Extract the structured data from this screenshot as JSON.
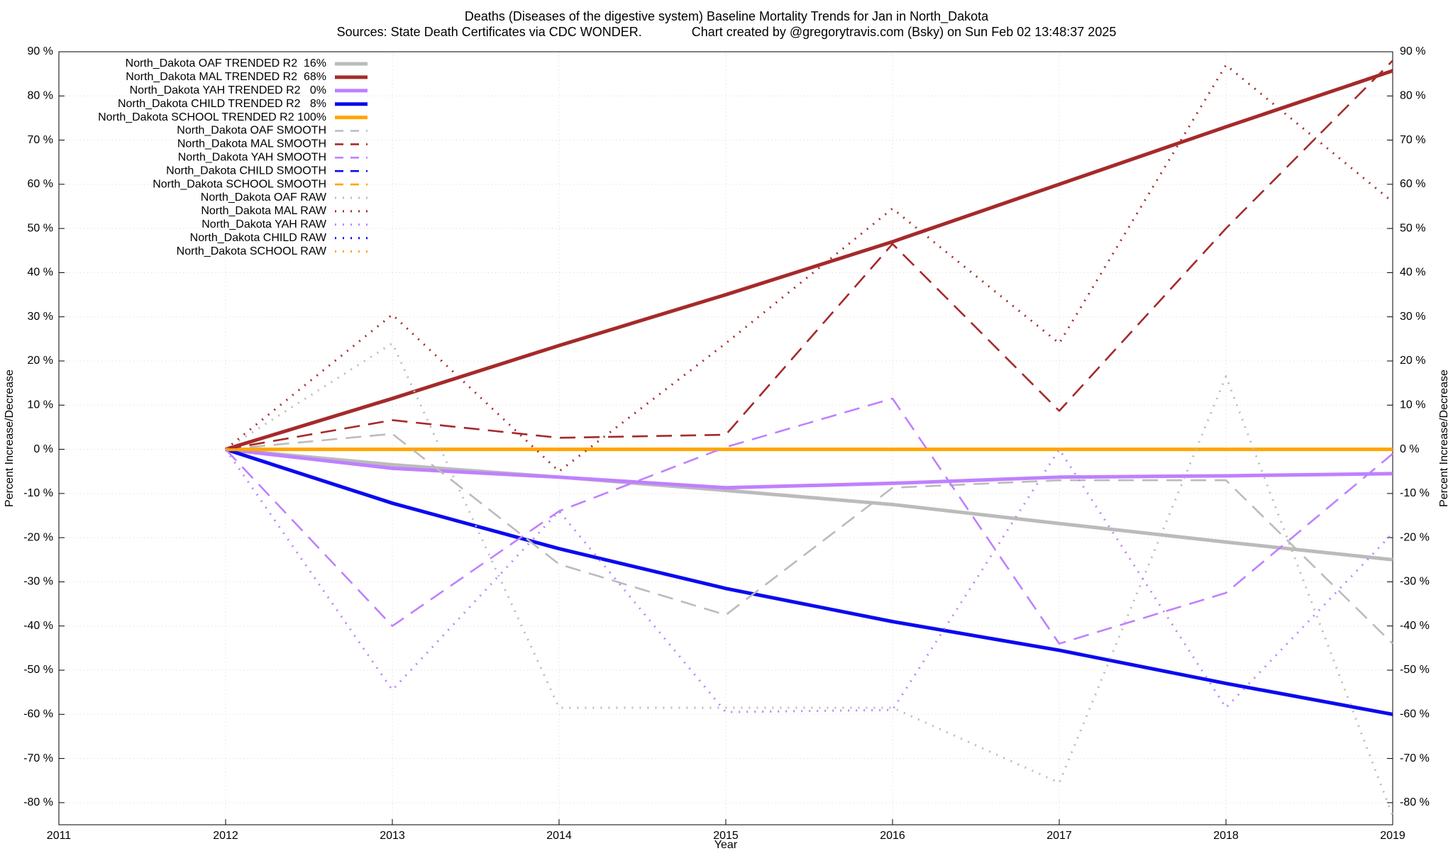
{
  "chart_data": {
    "type": "line",
    "title": "Deaths (Diseases of the digestive system)  Baseline Mortality Trends for Jan in North_Dakota",
    "subtitle": "Sources: State Death Certificates via CDC WONDER.              Chart created by @gregorytravis.com (Bsky) on Sun Feb 02 13:48:37 2025",
    "xlabel": "Year",
    "ylabel": "Percent Increase/Decrease",
    "y2label": "Percent Increase/Decrease",
    "xlim": [
      2011,
      2019
    ],
    "xticks": [
      2011,
      2012,
      2013,
      2014,
      2015,
      2016,
      2017,
      2018,
      2019
    ],
    "ylim": [
      -85,
      90
    ],
    "yticks": [
      {
        "value": -80,
        "label": "-80 %"
      },
      {
        "value": -70,
        "label": "-70 %"
      },
      {
        "value": -60,
        "label": "-60 %"
      },
      {
        "value": -50,
        "label": "-50 %"
      },
      {
        "value": -40,
        "label": "-40 %"
      },
      {
        "value": -30,
        "label": "-30 %"
      },
      {
        "value": -20,
        "label": "-20 %"
      },
      {
        "value": -10,
        "label": "-10 %"
      },
      {
        "value": 0,
        "label": "0 %"
      },
      {
        "value": 10,
        "label": "10 %"
      },
      {
        "value": 20,
        "label": "20 %"
      },
      {
        "value": 30,
        "label": "30 %"
      },
      {
        "value": 40,
        "label": "40 %"
      },
      {
        "value": 50,
        "label": "50 %"
      },
      {
        "value": 60,
        "label": "60 %"
      },
      {
        "value": 70,
        "label": "70 %"
      },
      {
        "value": 80,
        "label": "80 %"
      },
      {
        "value": 90,
        "label": "90 %"
      }
    ],
    "grid": true,
    "legend": "top-left",
    "x": [
      2012,
      2013,
      2014,
      2015,
      2016,
      2017,
      2018,
      2019
    ],
    "series": [
      {
        "name": "North_Dakota OAF TRENDED R2  16%",
        "color": "#bbbbbb",
        "style": "solid",
        "values": [
          0,
          -3.5,
          -6.3,
          -9.3,
          -12.5,
          -16.8,
          -21,
          -25
        ]
      },
      {
        "name": "North_Dakota MAL TRENDED R2  68%",
        "color": "#a52a2a",
        "style": "solid",
        "values": [
          0,
          11.5,
          23.5,
          35,
          47,
          60,
          73,
          85.7
        ]
      },
      {
        "name": "North_Dakota YAH TRENDED R2   0%",
        "color": "#bf80ff",
        "style": "solid",
        "values": [
          0,
          -4.3,
          -6.3,
          -8.7,
          -7.7,
          -6.3,
          -6,
          -5.5
        ]
      },
      {
        "name": "North_Dakota CHILD TRENDED R2   8%",
        "color": "#0a0af0",
        "style": "solid",
        "values": [
          0,
          -12.2,
          -22.5,
          -31.5,
          -39,
          -45.5,
          -53,
          -60
        ]
      },
      {
        "name": "North_Dakota SCHOOL TRENDED R2 100%",
        "color": "#ffa500",
        "style": "solid",
        "values": [
          0,
          0,
          0,
          0,
          0,
          0,
          0,
          0
        ]
      },
      {
        "name": "North_Dakota OAF SMOOTH",
        "color": "#bbbbbb",
        "style": "dashed",
        "values": [
          0,
          3.5,
          -26,
          -37.5,
          -8.7,
          -7,
          -7,
          -44
        ]
      },
      {
        "name": "North_Dakota MAL SMOOTH",
        "color": "#a52a2a",
        "style": "dashed",
        "values": [
          0,
          6.6,
          2.6,
          3.3,
          46.5,
          8.7,
          50,
          88
        ]
      },
      {
        "name": "North_Dakota YAH SMOOTH",
        "color": "#bf80ff",
        "style": "dashed",
        "values": [
          0,
          -40,
          -14,
          0.5,
          11.5,
          -44,
          -32.5,
          -1
        ]
      },
      {
        "name": "North_Dakota CHILD SMOOTH",
        "color": "#0a0af0",
        "style": "dashed",
        "values": [
          null,
          null,
          null,
          null,
          null,
          null,
          null,
          null
        ]
      },
      {
        "name": "North_Dakota SCHOOL SMOOTH",
        "color": "#ffa500",
        "style": "dashed",
        "values": [
          0,
          0,
          0,
          0,
          0,
          0,
          0,
          0
        ]
      },
      {
        "name": "North_Dakota OAF RAW",
        "color": "#bbbbbb",
        "style": "dotted",
        "values": [
          0,
          24,
          -58.5,
          -58.5,
          -58.5,
          -75.5,
          16.5,
          -83
        ]
      },
      {
        "name": "North_Dakota MAL RAW",
        "color": "#a52a2a",
        "style": "dotted",
        "values": [
          0,
          30.5,
          -5,
          24,
          54.5,
          24,
          87,
          56
        ]
      },
      {
        "name": "North_Dakota YAH RAW",
        "color": "#bf80ff",
        "style": "dotted",
        "values": [
          0,
          -54.5,
          -14,
          -59.5,
          -59,
          0,
          -58.5,
          -19
        ]
      },
      {
        "name": "North_Dakota CHILD RAW",
        "color": "#0a0af0",
        "style": "dotted",
        "values": [
          null,
          null,
          null,
          null,
          null,
          null,
          null,
          null
        ]
      },
      {
        "name": "North_Dakota SCHOOL RAW",
        "color": "#ffa500",
        "style": "dotted",
        "values": [
          0,
          0,
          0,
          0,
          0,
          0,
          0,
          0
        ]
      }
    ]
  }
}
